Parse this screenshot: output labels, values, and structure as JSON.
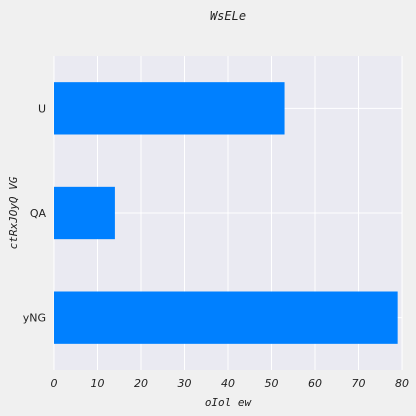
{
  "chart_data": {
    "type": "bar",
    "orientation": "horizontal",
    "title": "WsELe",
    "xlabel": "oIol ew",
    "ylabel": "ctRxJOyQ VG",
    "categories": [
      "yNG",
      "QA",
      "U"
    ],
    "values": [
      79,
      14,
      53
    ],
    "xlim": [
      0,
      80
    ],
    "xticks": [
      0,
      10,
      20,
      30,
      40,
      50,
      60,
      70,
      80
    ],
    "grid": true,
    "bar_color": "#0080ff",
    "plot_background": "#eaeaf2",
    "grid_color": "#ffffff"
  }
}
